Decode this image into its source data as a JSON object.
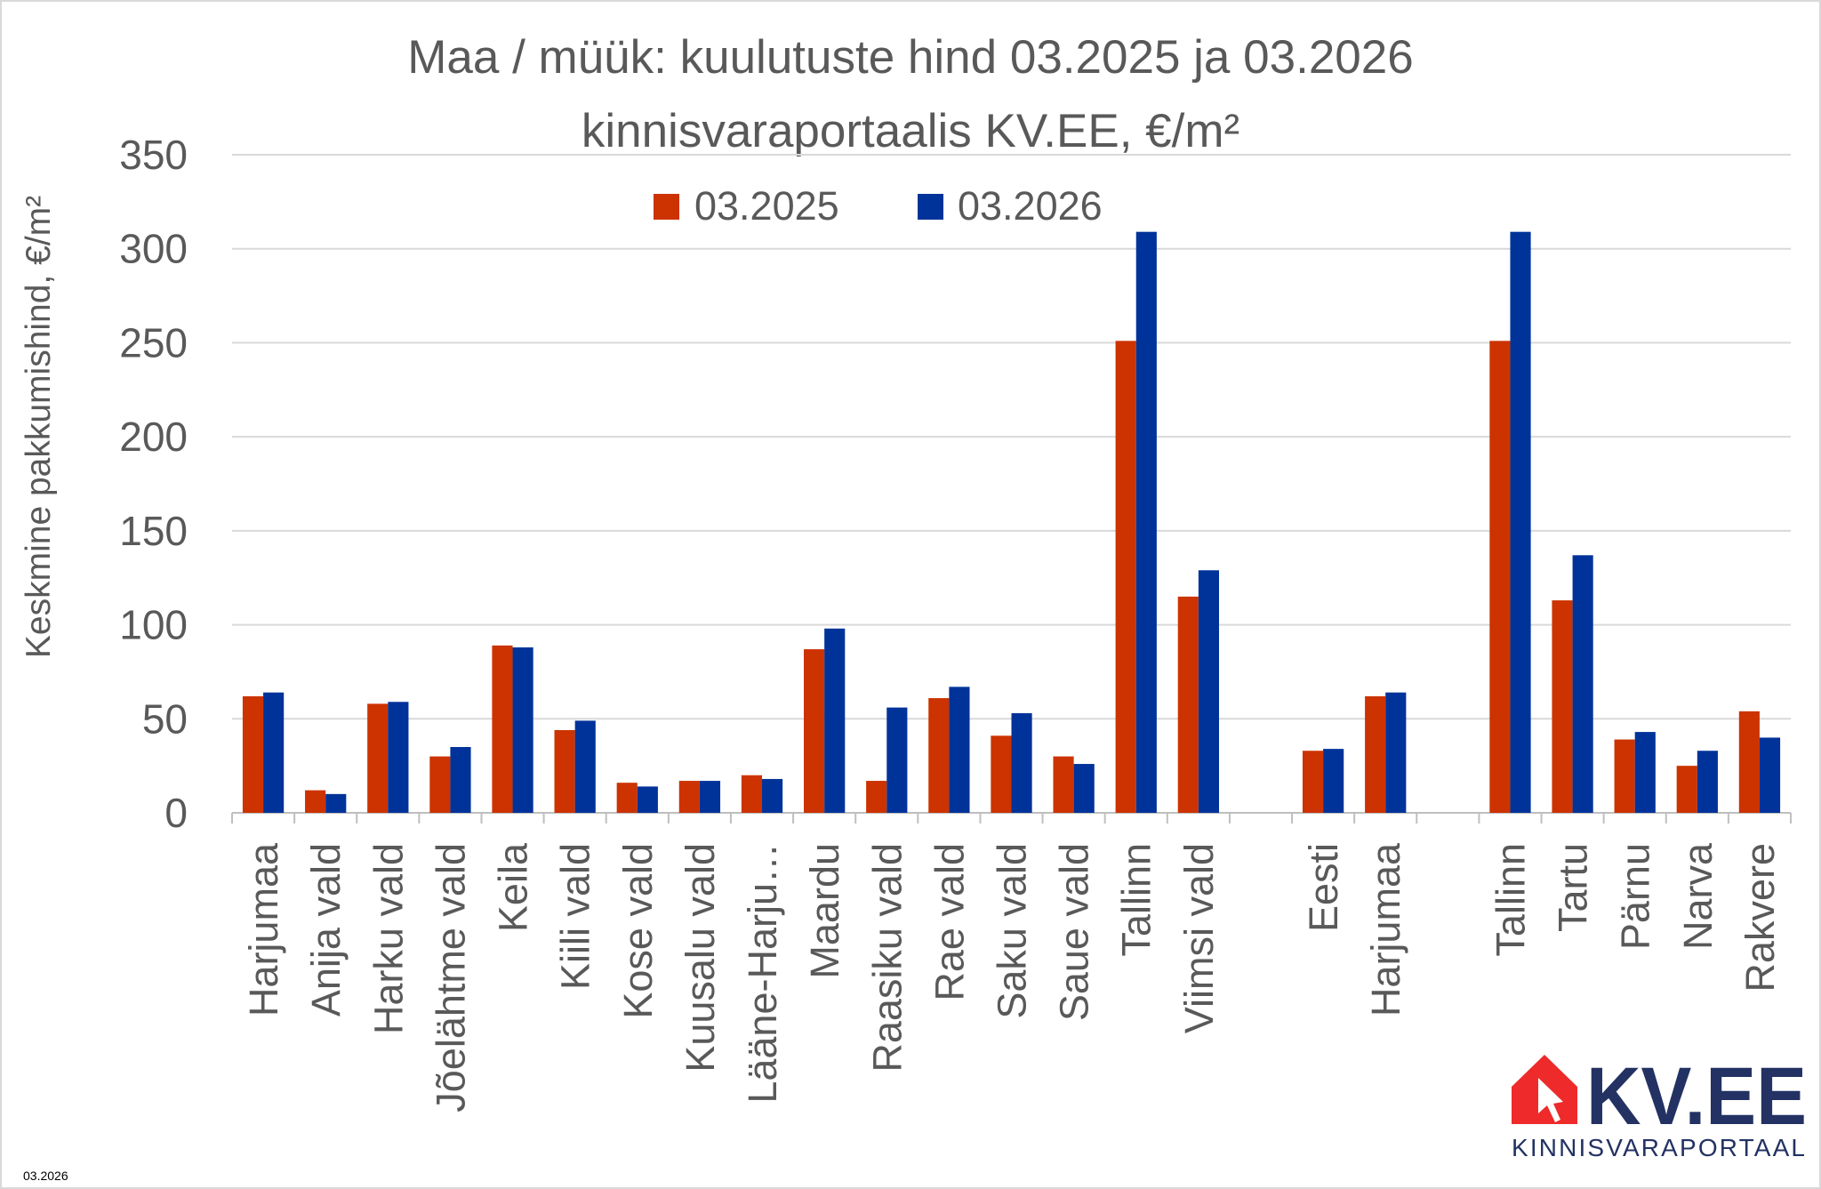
{
  "chart_data": {
    "type": "bar",
    "title": [
      "Maa / müük: kuulutuste hind 03.2025 ja 03.2026",
      "kinnisvaraportaalis KV.EE, €/m²"
    ],
    "ylabel": "Keskmine pakkumishind, €/m²",
    "xlabel": "",
    "ylim": [
      0,
      350
    ],
    "yticks": [
      0,
      50,
      100,
      150,
      200,
      250,
      300,
      350
    ],
    "grid": true,
    "legend_placement": "top-center",
    "categories": [
      "Harjumaa",
      "Anija vald",
      "Harku vald",
      "Jõelähtme vald",
      "Keila",
      "Kiili vald",
      "Kose vald",
      "Kuusalu vald",
      "Lääne-Harju…",
      "Maardu",
      "Raasiku vald",
      "Rae vald",
      "Saku vald",
      "Saue vald",
      "Tallinn",
      "Viimsi vald",
      "",
      "Eesti",
      "Harjumaa",
      "",
      "Tallinn",
      "Tartu",
      "Pärnu",
      "Narva",
      "Rakvere"
    ],
    "series": [
      {
        "name": "03.2025",
        "color": "#CC3300",
        "values": [
          62,
          12,
          58,
          30,
          89,
          44,
          16,
          17,
          20,
          87,
          17,
          61,
          41,
          30,
          251,
          115,
          null,
          33,
          62,
          null,
          251,
          113,
          39,
          25,
          54
        ]
      },
      {
        "name": "03.2026",
        "color": "#003399",
        "values": [
          64,
          10,
          59,
          35,
          88,
          49,
          14,
          17,
          18,
          98,
          56,
          67,
          53,
          26,
          309,
          129,
          null,
          34,
          64,
          null,
          309,
          137,
          43,
          33,
          40
        ]
      }
    ]
  },
  "footer": {
    "date": "03.2026"
  },
  "logo": {
    "name": "KV.EE",
    "tagline": "KINNISVARAPORTAAL",
    "red": "#EE2A2A",
    "navy": "#233263"
  }
}
